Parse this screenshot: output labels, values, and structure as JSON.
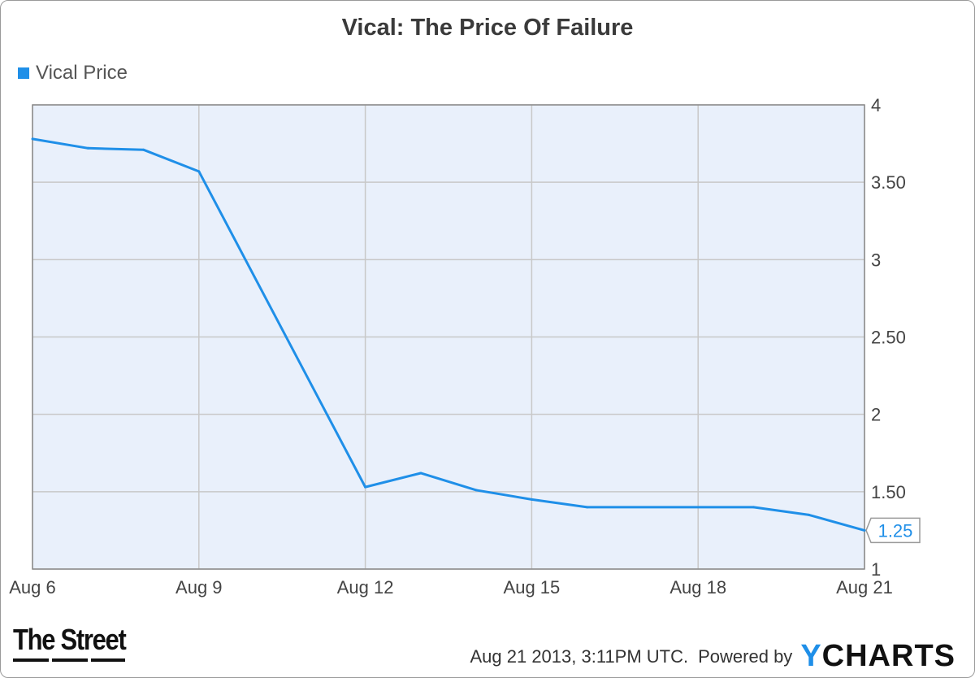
{
  "chart_data": {
    "type": "line",
    "title": "Vical: The Price Of Failure",
    "legend_position": "top-left",
    "grid": true,
    "x": [
      "2013-08-06",
      "2013-08-07",
      "2013-08-08",
      "2013-08-09",
      "2013-08-12",
      "2013-08-13",
      "2013-08-14",
      "2013-08-15",
      "2013-08-16",
      "2013-08-19",
      "2013-08-20",
      "2013-08-21"
    ],
    "x_tick_labels": [
      "Aug 6",
      "Aug 9",
      "Aug 12",
      "Aug 15",
      "Aug 18",
      "Aug 21"
    ],
    "x_tick_dates": [
      "2013-08-06",
      "2013-08-09",
      "2013-08-12",
      "2013-08-15",
      "2013-08-18",
      "2013-08-21"
    ],
    "xlim": [
      "2013-08-06",
      "2013-08-21"
    ],
    "ylim": [
      1,
      4
    ],
    "y_ticks": [
      1,
      1.5,
      2,
      2.5,
      3,
      3.5,
      4
    ],
    "y_tick_labels": [
      "1",
      "1.50",
      "2",
      "2.50",
      "3",
      "3.50",
      "4"
    ],
    "y_axis_side": "right",
    "series": [
      {
        "name": "Vical Price",
        "color": "#1f8fe8",
        "values": [
          3.78,
          3.72,
          3.71,
          3.57,
          1.53,
          1.62,
          1.51,
          1.45,
          1.4,
          1.4,
          1.35,
          1.25
        ]
      }
    ],
    "last_value_label": "1.25"
  },
  "branding": {
    "left_logo": "The Street",
    "timestamp": "Aug 21 2013, 3:11PM UTC.",
    "powered_by": "Powered by",
    "ycharts_y": "Y",
    "ycharts_rest": "CHARTS"
  },
  "colors": {
    "plot_background": "#e9f0fb",
    "gridline": "#c8c8c8",
    "line": "#1f8fe8"
  }
}
